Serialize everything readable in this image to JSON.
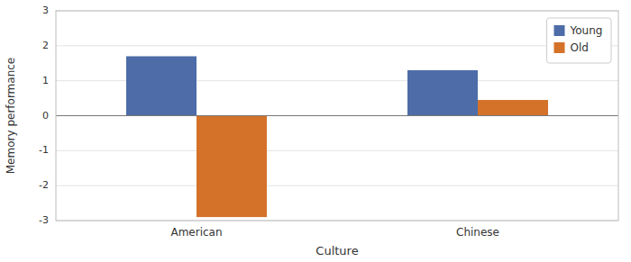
{
  "chart_data": {
    "type": "bar",
    "categories": [
      "American",
      "Chinese"
    ],
    "series": [
      {
        "name": "Young",
        "color": "#4e6da8",
        "values": [
          1.7,
          1.3
        ]
      },
      {
        "name": "Old",
        "color": "#d4722a",
        "values": [
          -2.9,
          0.45
        ]
      }
    ],
    "xlabel": "Culture",
    "ylabel": "Memory performance",
    "ylim": [
      -3,
      3
    ],
    "yticks": [
      -3,
      -2,
      -1,
      0,
      1,
      2,
      3
    ],
    "grid": true,
    "legend": "upper right"
  }
}
